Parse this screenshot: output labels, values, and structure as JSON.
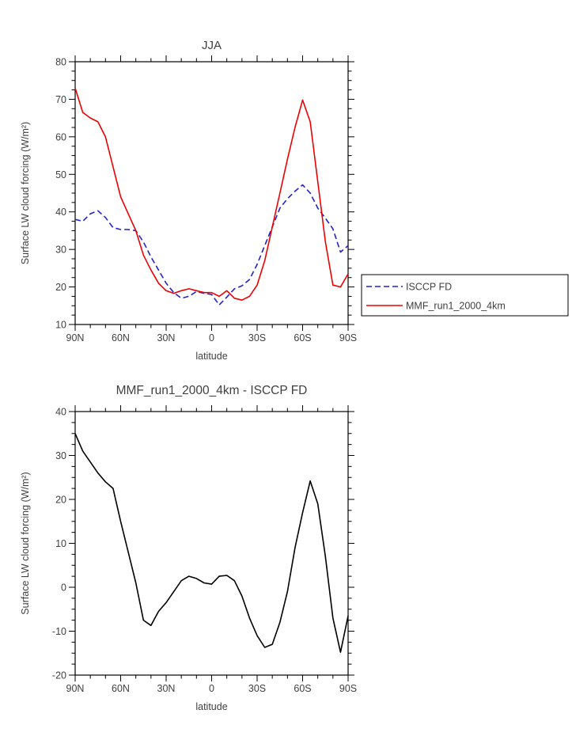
{
  "chart_data": [
    {
      "type": "line",
      "title": "JJA",
      "xlabel": "latitude",
      "ylabel": "Surface LW cloud forcing (W/m²)",
      "xlim": [
        90,
        -90
      ],
      "ylim": [
        10,
        80
      ],
      "ytick_step": 10,
      "xtick_values": [
        90,
        60,
        30,
        0,
        -30,
        -60,
        -90
      ],
      "xtick_labels": [
        "90N",
        "60N",
        "30N",
        "0",
        "30S",
        "60S",
        "90S"
      ],
      "x": [
        90,
        85,
        80,
        75,
        70,
        65,
        60,
        55,
        50,
        45,
        40,
        35,
        30,
        25,
        20,
        15,
        10,
        5,
        0,
        -5,
        -10,
        -15,
        -20,
        -25,
        -30,
        -35,
        -40,
        -45,
        -50,
        -55,
        -60,
        -65,
        -70,
        -75,
        -80,
        -85,
        -90
      ],
      "legend": {
        "position": "right-outside",
        "entries": [
          "ISCCP FD",
          "MMF_run1_2000_4km"
        ]
      },
      "series": [
        {
          "name": "ISCCP FD",
          "color": "#2222cc",
          "style": "dashed",
          "values": [
            38,
            37.5,
            39.5,
            40.3,
            38.5,
            35.8,
            35.3,
            35.3,
            35,
            32,
            28,
            24.5,
            21,
            18.5,
            17,
            17.5,
            18.8,
            18.3,
            18,
            15.2,
            17.3,
            19.5,
            20.3,
            22,
            26,
            31,
            36,
            41,
            43.5,
            45.5,
            47.2,
            45,
            41,
            38.3,
            35.5,
            29.3,
            31
          ]
        },
        {
          "name": "MMF_run1_2000_4km",
          "color": "#ee0000",
          "style": "solid",
          "values": [
            73,
            66.5,
            65,
            64,
            60,
            52,
            44,
            39.5,
            35,
            28.5,
            24.5,
            21,
            19,
            18.3,
            19,
            19.5,
            19,
            18.5,
            18.5,
            17.5,
            19,
            17,
            16.5,
            17.5,
            20.5,
            27,
            36,
            45,
            54,
            62.5,
            69.8,
            64,
            48,
            32,
            20.5,
            20,
            23.5
          ]
        }
      ]
    },
    {
      "type": "line",
      "title": "MMF_run1_2000_4km - ISCCP FD",
      "xlabel": "latitude",
      "ylabel": "Surface LW cloud forcing (W/m²)",
      "xlim": [
        90,
        -90
      ],
      "ylim": [
        -20,
        40
      ],
      "ytick_step": 10,
      "xtick_values": [
        90,
        60,
        30,
        0,
        -30,
        -60,
        -90
      ],
      "xtick_labels": [
        "90N",
        "60N",
        "30N",
        "0",
        "30S",
        "60S",
        "90S"
      ],
      "x": [
        90,
        85,
        80,
        75,
        70,
        65,
        60,
        55,
        50,
        45,
        40,
        35,
        30,
        25,
        20,
        15,
        10,
        5,
        0,
        -5,
        -10,
        -15,
        -20,
        -25,
        -30,
        -35,
        -40,
        -45,
        -50,
        -55,
        -60,
        -65,
        -70,
        -75,
        -80,
        -85,
        -90
      ],
      "series": [
        {
          "name": "MMF minus ISCCP difference",
          "color": "#000000",
          "style": "solid",
          "values": [
            35,
            31,
            28.5,
            26,
            24,
            22.5,
            15,
            8,
            1,
            -7.5,
            -8.7,
            -5.5,
            -3.5,
            -1,
            1.5,
            2.5,
            2,
            1,
            0.7,
            2.5,
            2.7,
            1.5,
            -2,
            -7,
            -11,
            -13.7,
            -13,
            -8,
            -1,
            9,
            17,
            24.2,
            19,
            7,
            -7,
            -14.8,
            -6.5
          ]
        }
      ]
    }
  ]
}
